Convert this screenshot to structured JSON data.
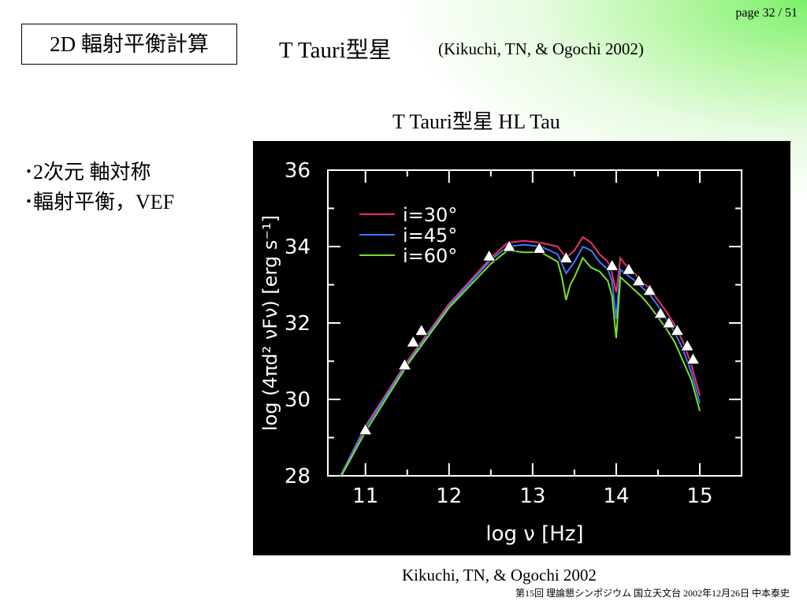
{
  "page_number": "page 32 / 51",
  "slide_title": "2D 輻射平衡計算",
  "main_title": "T Tauri型星",
  "citation_top": "(Kikuchi, TN, & Ogochi 2002)",
  "bullets": [
    {
      "text": "2次元 軸対称"
    },
    {
      "text": "輻射平衡，VEF"
    }
  ],
  "caption": "Kikuchi, TN, & Ogochi 2002",
  "footer": "第15回 理論懇シンポジウム 国立天文台 2002年12月26日 中本泰史",
  "chart_data": {
    "type": "line",
    "title": "T Tauri型星 HL Tau",
    "xlabel": "log ν [Hz]",
    "ylabel": "log (4πd² νFν) [erg s⁻¹]",
    "xlim": [
      10.55,
      15.5
    ],
    "ylim": [
      28,
      36
    ],
    "xticks": [
      11,
      12,
      13,
      14,
      15
    ],
    "yticks": [
      28,
      30,
      32,
      34,
      36
    ],
    "grid": false,
    "legend_position": "top-left",
    "background": "#000000",
    "axis_color": "#ffffff",
    "series": [
      {
        "name": "i=30°",
        "color": "#e8326e",
        "x": [
          10.7,
          11.0,
          11.5,
          12.0,
          12.5,
          12.7,
          12.9,
          13.1,
          13.3,
          13.4,
          13.5,
          13.6,
          13.7,
          13.8,
          13.9,
          13.95,
          14.0,
          14.05,
          14.1,
          14.2,
          14.3,
          14.4,
          14.5,
          14.6,
          14.7,
          14.8,
          14.9,
          15.0
        ],
        "y": [
          28.0,
          29.3,
          31.0,
          32.5,
          33.7,
          34.1,
          34.15,
          34.1,
          34.0,
          33.7,
          33.9,
          34.25,
          34.1,
          33.8,
          33.6,
          33.3,
          32.8,
          33.7,
          33.55,
          33.35,
          33.1,
          32.9,
          32.6,
          32.3,
          31.95,
          31.5,
          30.9,
          30.1
        ]
      },
      {
        "name": "i=45°",
        "color": "#3c78ff",
        "x": [
          10.7,
          11.0,
          11.5,
          12.0,
          12.5,
          12.7,
          12.9,
          13.1,
          13.3,
          13.4,
          13.5,
          13.6,
          13.7,
          13.8,
          13.9,
          13.95,
          14.0,
          14.05,
          14.1,
          14.2,
          14.3,
          14.4,
          14.5,
          14.6,
          14.7,
          14.8,
          14.9,
          15.0
        ],
        "y": [
          28.0,
          29.25,
          30.95,
          32.45,
          33.65,
          34.0,
          34.05,
          34.0,
          33.8,
          33.3,
          33.6,
          34.0,
          33.9,
          33.6,
          33.4,
          33.1,
          32.1,
          33.4,
          33.3,
          33.15,
          32.95,
          32.75,
          32.45,
          32.1,
          31.75,
          31.3,
          30.7,
          29.9
        ]
      },
      {
        "name": "i=60°",
        "color": "#7ae02a",
        "x": [
          10.7,
          11.0,
          11.5,
          12.0,
          12.5,
          12.7,
          12.9,
          13.1,
          13.3,
          13.35,
          13.4,
          13.45,
          13.5,
          13.6,
          13.7,
          13.8,
          13.9,
          13.95,
          14.0,
          14.05,
          14.1,
          14.2,
          14.3,
          14.4,
          14.5,
          14.6,
          14.7,
          14.8,
          14.9,
          15.0
        ],
        "y": [
          27.95,
          29.15,
          30.9,
          32.4,
          33.55,
          33.9,
          33.85,
          33.85,
          33.6,
          33.2,
          32.6,
          33.0,
          33.2,
          33.7,
          33.45,
          33.35,
          33.1,
          32.7,
          31.6,
          33.2,
          33.1,
          32.9,
          32.7,
          32.45,
          32.15,
          31.85,
          31.5,
          31.0,
          30.5,
          29.7
        ]
      }
    ],
    "observations": {
      "marker": "triangle",
      "color": "#ffffff",
      "x": [
        11.0,
        11.47,
        11.57,
        11.67,
        12.48,
        12.72,
        13.08,
        13.4,
        13.95,
        14.15,
        14.27,
        14.4,
        14.53,
        14.63,
        14.73,
        14.85,
        14.92
      ],
      "y": [
        29.2,
        30.9,
        31.5,
        31.8,
        33.75,
        34.0,
        33.95,
        33.7,
        33.5,
        33.4,
        33.1,
        32.85,
        32.25,
        32.0,
        31.8,
        31.4,
        31.05
      ]
    }
  }
}
